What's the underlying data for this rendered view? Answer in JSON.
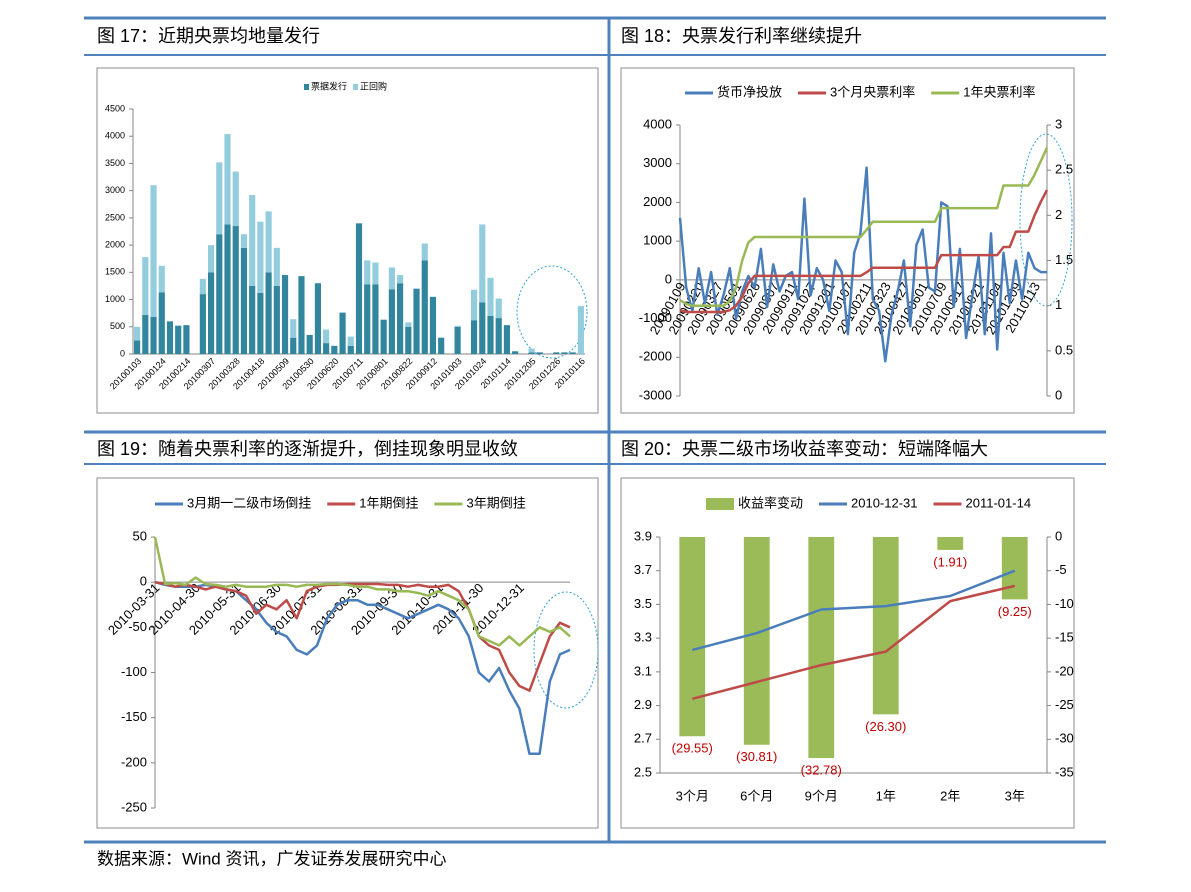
{
  "chart_data": [
    {
      "type": "bar",
      "stacked": true,
      "title": "图 17：近期央票均地量发行",
      "categories": [
        "20100103",
        null,
        null,
        "20100124",
        null,
        null,
        "20100214",
        null,
        null,
        "20100307",
        null,
        null,
        "20100328",
        null,
        null,
        "20100418",
        null,
        null,
        "20100509",
        null,
        null,
        "20100530",
        null,
        null,
        "20100620",
        null,
        null,
        "20100711",
        null,
        null,
        "20100801",
        null,
        null,
        "20100822",
        null,
        null,
        "20100912",
        null,
        null,
        "20101003",
        null,
        null,
        "20101024",
        null,
        null,
        "20101114",
        null,
        null,
        "20101205",
        null,
        null,
        "20101226",
        null,
        null,
        "20110116"
      ],
      "series": [
        {
          "name": "票据发行",
          "color": "#31859c",
          "values": [
            250,
            720,
            680,
            1130,
            600,
            520,
            530,
            0,
            1100,
            1500,
            2200,
            2380,
            2350,
            1950,
            1250,
            1120,
            1500,
            1250,
            1450,
            300,
            1430,
            350,
            1300,
            200,
            150,
            760,
            150,
            2400,
            1280,
            1280,
            630,
            1190,
            1300,
            500,
            1200,
            1720,
            1050,
            300,
            0,
            500,
            0,
            620,
            950,
            700,
            660,
            530,
            50,
            0,
            30,
            30,
            0,
            30,
            30,
            30,
            0
          ]
        },
        {
          "name": "正回购",
          "color": "#93cddd",
          "values": [
            250,
            1060,
            2420,
            490,
            0,
            0,
            0,
            0,
            280,
            500,
            1320,
            1660,
            1000,
            250,
            1670,
            1310,
            1120,
            700,
            0,
            340,
            0,
            0,
            0,
            250,
            0,
            0,
            170,
            0,
            440,
            400,
            0,
            400,
            150,
            80,
            0,
            310,
            0,
            0,
            0,
            20,
            0,
            560,
            1430,
            700,
            360,
            0,
            0,
            0,
            70,
            0,
            0,
            0,
            0,
            0,
            880
          ]
        }
      ],
      "ylim": [
        0,
        4500
      ],
      "yticks": [
        0,
        500,
        1000,
        1500,
        2000,
        2500,
        3000,
        3500,
        4000,
        4500
      ]
    },
    {
      "type": "line",
      "title": "图 18：央票发行利率继续提升",
      "categories": [
        "20090109",
        null,
        null,
        "20090220",
        null,
        null,
        "20090327",
        null,
        null,
        "20090501",
        null,
        null,
        "20090626",
        null,
        null,
        "20090807",
        null,
        null,
        "20090911",
        null,
        null,
        "20091027",
        null,
        null,
        "20091201",
        null,
        null,
        "20100107",
        null,
        null,
        "20100211",
        null,
        null,
        "20100323",
        null,
        null,
        "20100427",
        null,
        null,
        "20100601",
        null,
        null,
        "20100709",
        null,
        null,
        "20100817",
        null,
        null,
        "20100921",
        null,
        null,
        "20101104",
        null,
        null,
        "20101209",
        null,
        null,
        "20110113",
        null,
        null
      ],
      "series": [
        {
          "name": "货币净投放",
          "color": "#4a7ebb",
          "values": [
            1600,
            -200,
            -800,
            300,
            -600,
            200,
            -900,
            -400,
            300,
            -1000,
            -300,
            100,
            -200,
            800,
            -700,
            400,
            -300,
            100,
            200,
            -500,
            2100,
            -400,
            300,
            0,
            -800,
            500,
            200,
            -1400,
            700,
            1200,
            2900,
            -500,
            -800,
            -2100,
            -900,
            -300,
            500,
            -1200,
            900,
            1300,
            -200,
            -300,
            2000,
            1900,
            -700,
            800,
            -1500,
            -400,
            600,
            -1400,
            1200,
            -1800,
            700,
            -600,
            500,
            -500,
            700,
            300,
            200,
            200
          ]
        },
        {
          "name": "3个月央票利率",
          "color": "#be4b48",
          "axis": "y2",
          "values": [
            0.95,
            0.93,
            0.93,
            0.93,
            0.93,
            0.93,
            0.93,
            0.93,
            0.95,
            1.0,
            1.1,
            1.25,
            1.33,
            1.33,
            1.33,
            1.33,
            1.33,
            1.33,
            1.33,
            1.33,
            1.33,
            1.33,
            1.33,
            1.33,
            1.33,
            1.33,
            1.33,
            1.33,
            1.33,
            1.33,
            1.37,
            1.42,
            1.42,
            1.42,
            1.42,
            1.42,
            1.42,
            1.42,
            1.42,
            1.42,
            1.42,
            1.42,
            1.56,
            1.56,
            1.56,
            1.56,
            1.56,
            1.56,
            1.56,
            1.56,
            1.56,
            1.56,
            1.65,
            1.65,
            1.82,
            1.82,
            1.82,
            2.0,
            2.15,
            2.28
          ]
        },
        {
          "name": "1年央票利率",
          "color": "#98b954",
          "axis": "y2",
          "values": [
            1.06,
            1.02,
            1.0,
            1.0,
            1.0,
            1.0,
            1.0,
            1.0,
            1.05,
            1.2,
            1.5,
            1.7,
            1.76,
            1.76,
            1.76,
            1.76,
            1.76,
            1.76,
            1.76,
            1.76,
            1.76,
            1.76,
            1.76,
            1.76,
            1.76,
            1.76,
            1.76,
            1.76,
            1.76,
            1.76,
            1.84,
            1.93,
            1.93,
            1.93,
            1.93,
            1.93,
            1.93,
            1.93,
            1.93,
            1.93,
            1.93,
            1.93,
            2.08,
            2.08,
            2.08,
            2.08,
            2.08,
            2.08,
            2.08,
            2.08,
            2.08,
            2.08,
            2.33,
            2.33,
            2.33,
            2.33,
            2.33,
            2.45,
            2.6,
            2.75
          ]
        }
      ],
      "ylim": [
        -3000,
        4000
      ],
      "yticks": [
        -3000,
        -2000,
        -1000,
        0,
        1000,
        2000,
        3000,
        4000
      ],
      "y2lim": [
        0,
        3
      ],
      "y2ticks": [
        0,
        0.5,
        1,
        1.5,
        2,
        2.5,
        3
      ]
    },
    {
      "type": "line",
      "title": "图 19：随着央票利率的逐渐提升，倒挂现象明显收敛",
      "categories": [
        "2010-03-31",
        null,
        null,
        null,
        "2010-04-30",
        null,
        null,
        null,
        "2010-05-31",
        null,
        null,
        null,
        "2010-06-30",
        null,
        null,
        null,
        "2010-07-31",
        null,
        null,
        null,
        "2010-08-31",
        null,
        null,
        null,
        "2010-09-30",
        null,
        null,
        null,
        "2010-10-31",
        null,
        null,
        null,
        "2010-11-30",
        null,
        null,
        null,
        "2010-12-31",
        null,
        null,
        null,
        null,
        null
      ],
      "series": [
        {
          "name": "3月期一二级市场倒挂",
          "color": "#4a7ebb",
          "values": [
            0,
            -3,
            -5,
            -5,
            -5,
            -3,
            -5,
            -8,
            -10,
            -20,
            -30,
            -45,
            -55,
            -60,
            -75,
            -80,
            -70,
            -40,
            -25,
            -20,
            -20,
            -25,
            -25,
            -30,
            -35,
            -40,
            -35,
            -30,
            -25,
            -30,
            -40,
            -60,
            -100,
            -110,
            -95,
            -120,
            -140,
            -190,
            -190,
            -110,
            -80,
            -75
          ]
        },
        {
          "name": "1年期倒挂",
          "color": "#be4b48",
          "values": [
            0,
            -2,
            -5,
            -3,
            -5,
            -8,
            -5,
            -8,
            -10,
            -15,
            -35,
            -25,
            -30,
            -20,
            -40,
            -10,
            -5,
            -3,
            -3,
            -2,
            -2,
            -2,
            -2,
            -3,
            -3,
            -5,
            -3,
            -5,
            -5,
            -3,
            -10,
            -30,
            -60,
            -70,
            -75,
            -100,
            -115,
            -120,
            -90,
            -60,
            -45,
            -50
          ]
        },
        {
          "name": "3年期倒挂",
          "color": "#98b954",
          "values": [
            50,
            -2,
            -1,
            -3,
            5,
            -2,
            -3,
            -5,
            -3,
            -5,
            -5,
            -5,
            -3,
            -3,
            -5,
            -3,
            -3,
            -2,
            -2,
            -3,
            -5,
            -5,
            -8,
            -8,
            -10,
            -10,
            -12,
            -15,
            -10,
            -15,
            -20,
            -30,
            -60,
            -65,
            -70,
            -60,
            -70,
            -60,
            -50,
            -55,
            -50,
            -60
          ]
        }
      ],
      "ylim": [
        -250,
        50
      ],
      "yticks": [
        -250,
        -200,
        -150,
        -100,
        -50,
        0,
        50
      ]
    },
    {
      "type": "bar",
      "title": "图 20：央票二级市场收益率变动：短端降幅大",
      "categories": [
        "3个月",
        "6个月",
        "9个月",
        "1年",
        "2年",
        "3年"
      ],
      "series": [
        {
          "name": "收益率变动",
          "color": "#9bbb59",
          "type": "bar",
          "axis": "y2",
          "values": [
            -29.55,
            -30.81,
            -32.78,
            -26.3,
            -1.91,
            -9.25
          ],
          "value_labels": [
            "(29.55)",
            "(30.81)",
            "(32.78)",
            "(26.30)",
            "(1.91)",
            "(9.25)"
          ],
          "value_label_color": "#c00000"
        },
        {
          "name": "2010-12-31",
          "color": "#4a7ebb",
          "type": "line",
          "values": [
            3.23,
            3.33,
            3.47,
            3.49,
            3.55,
            3.7
          ]
        },
        {
          "name": "2011-01-14",
          "color": "#be4b48",
          "type": "line",
          "values": [
            2.94,
            3.04,
            3.14,
            3.22,
            3.52,
            3.61
          ]
        }
      ],
      "ylim": [
        2.5,
        3.9
      ],
      "yticks": [
        2.5,
        2.7,
        2.9,
        3.1,
        3.3,
        3.5,
        3.7,
        3.9
      ],
      "y2lim": [
        -35,
        0
      ],
      "y2ticks": [
        -35,
        -30,
        -25,
        -20,
        -15,
        -10,
        -5,
        0
      ]
    }
  ],
  "footer": "数据来源：Wind 资讯，广发证券发展研究中心"
}
